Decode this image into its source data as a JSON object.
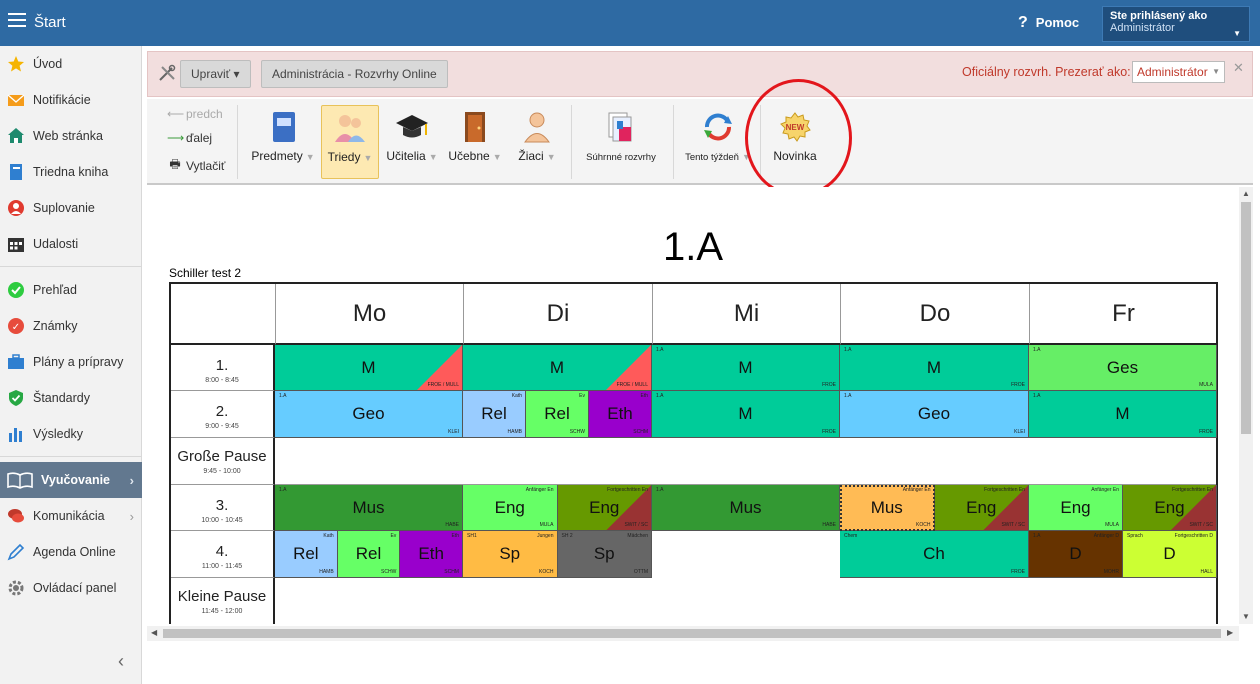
{
  "topbar": {
    "title": "Štart",
    "help": "Pomoc",
    "user_line1": "Ste prihlásený ako",
    "user_line2": "Administrátor"
  },
  "sidebar": {
    "items": [
      {
        "label": "Úvod"
      },
      {
        "label": "Notifikácie"
      },
      {
        "label": "Web stránka"
      },
      {
        "label": "Triedna kniha"
      },
      {
        "label": "Suplovanie"
      },
      {
        "label": "Udalosti"
      },
      {
        "label": "Prehľad"
      },
      {
        "label": "Známky"
      },
      {
        "label": "Plány a prípravy"
      },
      {
        "label": "Štandardy"
      },
      {
        "label": "Výsledky"
      },
      {
        "label": "Vyučovanie"
      },
      {
        "label": "Komunikácia"
      },
      {
        "label": "Agenda Online"
      },
      {
        "label": "Ovládací panel"
      }
    ]
  },
  "infobar": {
    "edit": "Upraviť ▾",
    "admin": "Administrácia - Rozvrhy Online",
    "official": "Oficiálny rozvrh.  Prezerať ako:",
    "view_as": "Administrátor"
  },
  "ribbon": {
    "prev": "predch",
    "next": "ďalej",
    "print": "Vytlačiť",
    "subjects": "Predmety",
    "classes": "Triedy",
    "teachers": "Učitelia",
    "rooms": "Učebne",
    "students": "Žiaci",
    "summary": "Súhrnné rozvrhy",
    "this_week": "Tento týždeň",
    "novelty": "Novinka",
    "new_badge": "NEW"
  },
  "timetable": {
    "class": "1.A",
    "school": "Schiller test 2",
    "days": [
      "Mo",
      "Di",
      "Mi",
      "Do",
      "Fr"
    ],
    "periods": [
      {
        "label": "1.",
        "time": "8:00 - 8:45"
      },
      {
        "label": "2.",
        "time": "9:00 - 9:45"
      },
      {
        "label": "Große Pause",
        "time": "9:45 - 10:00"
      },
      {
        "label": "3.",
        "time": "10:00 - 10:45"
      },
      {
        "label": "4.",
        "time": "11:00 - 11:45"
      },
      {
        "label": "Kleine Pause",
        "time": "11:45 - 12:00"
      }
    ],
    "lessons": [
      {
        "row": 0,
        "day": 0,
        "sub": 0,
        "of": 1,
        "subject": "M",
        "teacher": "FROE / MULL",
        "group": "",
        "group_r": "",
        "bg": "#ff5a5a",
        "bg2": "#00cc99"
      },
      {
        "row": 0,
        "day": 1,
        "sub": 0,
        "of": 1,
        "subject": "M",
        "teacher": "FROE / MULL",
        "group": "",
        "group_r": "",
        "bg": "#ff5a5a",
        "bg2": "#00cc99"
      },
      {
        "row": 0,
        "day": 2,
        "sub": 0,
        "of": 1,
        "subject": "M",
        "teacher": "FROE",
        "group": "1.A",
        "group_r": "",
        "bg": "#00cc99"
      },
      {
        "row": 0,
        "day": 3,
        "sub": 0,
        "of": 1,
        "subject": "M",
        "teacher": "FROE",
        "group": "1.A",
        "group_r": "",
        "bg": "#00cc99"
      },
      {
        "row": 0,
        "day": 4,
        "sub": 0,
        "of": 1,
        "subject": "Ges",
        "teacher": "MULA",
        "group": "1.A",
        "group_r": "",
        "bg": "#66ee66"
      },
      {
        "row": 1,
        "day": 0,
        "sub": 0,
        "of": 1,
        "subject": "Geo",
        "teacher": "KLEI",
        "group": "1.A",
        "group_r": "",
        "bg": "#66ccff"
      },
      {
        "row": 1,
        "day": 1,
        "sub": 0,
        "of": 3,
        "subject": "Rel",
        "teacher": "HAMB",
        "group": "",
        "group_r": "Kath",
        "bg": "#99ccff"
      },
      {
        "row": 1,
        "day": 1,
        "sub": 1,
        "of": 3,
        "subject": "Rel",
        "teacher": "SCHW",
        "group": "",
        "group_r": "Ev",
        "bg": "#66ff66"
      },
      {
        "row": 1,
        "day": 1,
        "sub": 2,
        "of": 3,
        "subject": "Eth",
        "teacher": "SCHM",
        "group": "",
        "group_r": "Eth",
        "bg": "#9900cc"
      },
      {
        "row": 1,
        "day": 2,
        "sub": 0,
        "of": 1,
        "subject": "M",
        "teacher": "FROE",
        "group": "1.A",
        "group_r": "",
        "bg": "#00cc99"
      },
      {
        "row": 1,
        "day": 3,
        "sub": 0,
        "of": 1,
        "subject": "Geo",
        "teacher": "KLEI",
        "group": "1.A",
        "group_r": "",
        "bg": "#66ccff"
      },
      {
        "row": 1,
        "day": 4,
        "sub": 0,
        "of": 1,
        "subject": "M",
        "teacher": "FROE",
        "group": "1.A",
        "group_r": "",
        "bg": "#00cc99"
      },
      {
        "row": 3,
        "day": 0,
        "sub": 0,
        "of": 1,
        "subject": "Mus",
        "teacher": "HABE",
        "group": "1.A",
        "group_r": "",
        "bg": "#339933"
      },
      {
        "row": 3,
        "day": 1,
        "sub": 0,
        "of": 2,
        "subject": "Eng",
        "teacher": "MULA",
        "group": "",
        "group_r": "Anfänger En",
        "bg": "#66ff66"
      },
      {
        "row": 3,
        "day": 1,
        "sub": 1,
        "of": 2,
        "subject": "Eng",
        "teacher": "SWIT / SC",
        "group": "",
        "group_r": "Fortgeschritten En",
        "bg": "#993333",
        "bg2": "#669900"
      },
      {
        "row": 3,
        "day": 2,
        "sub": 0,
        "of": 1,
        "subject": "Mus",
        "teacher": "HABE",
        "group": "1.A",
        "group_r": "",
        "bg": "#339933"
      },
      {
        "row": 3,
        "day": 3,
        "sub": 0,
        "of": 2,
        "subject": "Mus",
        "teacher": "KOCH",
        "group": "",
        "group_r": "Anfänger En",
        "bg": "#ffbb55",
        "dashed": true
      },
      {
        "row": 3,
        "day": 3,
        "sub": 1,
        "of": 2,
        "subject": "Eng",
        "teacher": "SWIT / SC",
        "group": "",
        "group_r": "Fortgeschritten En",
        "bg": "#993333",
        "bg2": "#669900"
      },
      {
        "row": 3,
        "day": 4,
        "sub": 0,
        "of": 2,
        "subject": "Eng",
        "teacher": "MULA",
        "group": "",
        "group_r": "Anfänger En",
        "bg": "#66ff66"
      },
      {
        "row": 3,
        "day": 4,
        "sub": 1,
        "of": 2,
        "subject": "Eng",
        "teacher": "SWIT / SC",
        "group": "",
        "group_r": "Fortgeschritten En",
        "bg": "#993333",
        "bg2": "#669900"
      },
      {
        "row": 4,
        "day": 0,
        "sub": 0,
        "of": 3,
        "subject": "Rel",
        "teacher": "HAMB",
        "group": "",
        "group_r": "Kath",
        "bg": "#99ccff"
      },
      {
        "row": 4,
        "day": 0,
        "sub": 1,
        "of": 3,
        "subject": "Rel",
        "teacher": "SCHW",
        "group": "",
        "group_r": "Ev",
        "bg": "#66ff66"
      },
      {
        "row": 4,
        "day": 0,
        "sub": 2,
        "of": 3,
        "subject": "Eth",
        "teacher": "SCHM",
        "group": "",
        "group_r": "Eth",
        "bg": "#9900cc"
      },
      {
        "row": 4,
        "day": 1,
        "sub": 0,
        "of": 2,
        "subject": "Sp",
        "teacher": "KOCH",
        "group": "SH1",
        "group_r": "Jungen",
        "bg": "#ffbb44"
      },
      {
        "row": 4,
        "day": 1,
        "sub": 1,
        "of": 2,
        "subject": "Sp",
        "teacher": "OTTM",
        "group": "SH 2",
        "group_r": "Mädchen",
        "bg": "#666666"
      },
      {
        "row": 4,
        "day": 3,
        "sub": 0,
        "of": 1,
        "subject": "Ch",
        "teacher": "FROE",
        "group": "Chem",
        "group_r": "",
        "bg": "#00cc99"
      },
      {
        "row": 4,
        "day": 4,
        "sub": 0,
        "of": 2,
        "subject": "D",
        "teacher": "MOHR",
        "group": "1.A",
        "group_r": "Anfänger D",
        "bg": "#663300"
      },
      {
        "row": 4,
        "day": 4,
        "sub": 1,
        "of": 2,
        "subject": "D",
        "teacher": "HALL",
        "group": "Sprach",
        "group_r": "Fortgeschritten D",
        "bg": "#ccff33"
      }
    ]
  },
  "colors": {
    "topbar": "#2e6aa3",
    "sidebar_active": "#62788f",
    "highlight_circle": "#e3161c",
    "official_text": "#c0392b"
  }
}
